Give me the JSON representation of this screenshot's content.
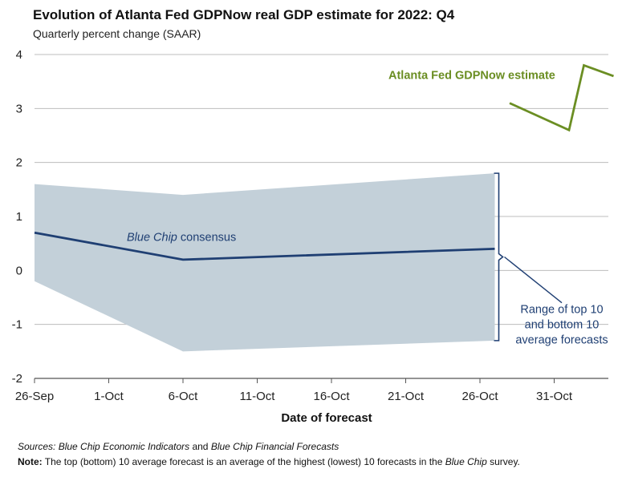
{
  "chart_data": {
    "type": "line",
    "title": "Evolution of Atlanta Fed GDPNow real GDP estimate for 2022: Q4",
    "subtitle": "Quarterly percent change (SAAR)",
    "xlabel": "Date of forecast",
    "ylabel": "",
    "ylim": [
      -2,
      4
    ],
    "yticks": [
      "4",
      "3",
      "2",
      "1",
      "0",
      "-1",
      "-2"
    ],
    "xticks": [
      "26-Sep",
      "1-Oct",
      "6-Oct",
      "11-Oct",
      "16-Oct",
      "21-Oct",
      "26-Oct",
      "31-Oct"
    ],
    "grid": "horizontal",
    "series": [
      {
        "name": "Blue Chip consensus",
        "color": "#1f3f73",
        "x": [
          "2022-09-26",
          "2022-10-06",
          "2022-10-27"
        ],
        "values": [
          0.7,
          0.2,
          0.4
        ]
      },
      {
        "name": "Atlanta Fed GDPNow estimate",
        "color": "#6b8e23",
        "x": [
          "2022-10-28",
          "2022-11-01",
          "2022-11-02",
          "2022-11-04"
        ],
        "values": [
          3.1,
          2.6,
          3.8,
          3.6
        ]
      }
    ],
    "range_band": {
      "name": "Range of top 10 and bottom 10 average forecasts",
      "color": "#c3d0d9",
      "x": [
        "2022-09-26",
        "2022-10-06",
        "2022-10-27"
      ],
      "upper": [
        1.6,
        1.4,
        1.8
      ],
      "lower": [
        -0.2,
        -1.5,
        -1.3
      ]
    },
    "annotations": {
      "gdpnow_label": "Atlanta Fed GDPNow estimate",
      "bluechip_label": "Blue Chip consensus",
      "range_label_lines": [
        "Range of top 10",
        "and bottom 10",
        "average forecasts"
      ]
    }
  },
  "footer": {
    "sources_label": "Sources:",
    "sources_part1": "Blue Chip Economic Indicators",
    "sources_and": " and ",
    "sources_part2": "Blue Chip Financial Forecasts",
    "note_label": "Note:",
    "note_text_1": " The top (bottom) 10 average forecast is an average of the highest (lowest) 10 forecasts in the ",
    "note_italic": "Blue Chip",
    "note_text_2": " survey."
  }
}
